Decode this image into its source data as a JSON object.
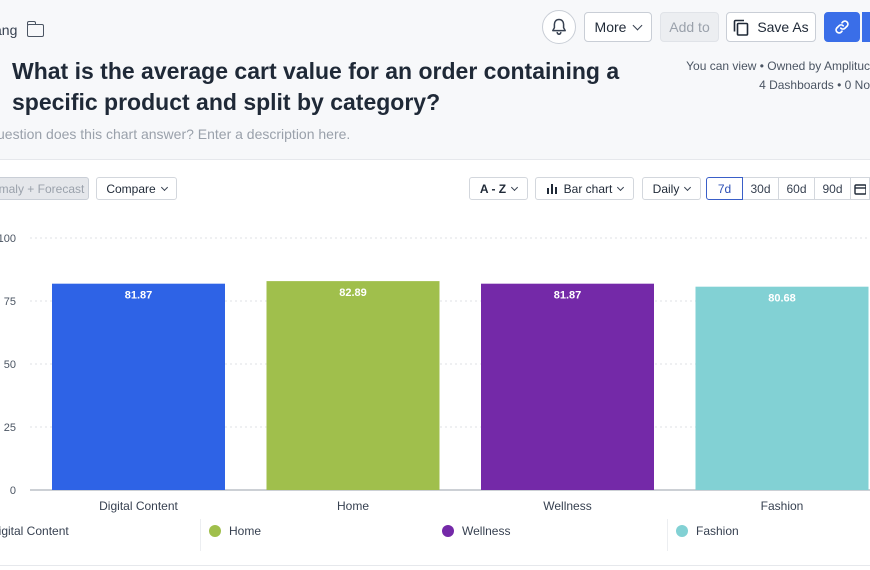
{
  "breadcrumb": {
    "owner_fragment": "ang"
  },
  "header": {
    "title": "What is the average cart value for an order containing a specific product and split by category?",
    "description_placeholder": "uestion does this chart answer? Enter a description here.",
    "permissions": "You can view • Owned by Amplituc",
    "usage": "4 Dashboards • 0 No"
  },
  "actions": {
    "more": "More",
    "add_to": "Add to",
    "save_as": "Save As"
  },
  "toolbar": {
    "anomaly_forecast": "maly + Forecast",
    "compare": "Compare",
    "sort": "A - Z",
    "chart_type": "Bar chart",
    "interval": "Daily",
    "ranges": [
      "7d",
      "30d",
      "60d",
      "90d"
    ],
    "active_range": "7d"
  },
  "colors": {
    "accent": "#3a6ee8",
    "digital_content": "#2e63e6",
    "home": "#a0bf4c",
    "wellness": "#7429a8",
    "fashion": "#82d1d4"
  },
  "chart_data": {
    "type": "bar",
    "categories": [
      "Digital Content",
      "Home",
      "Wellness",
      "Fashion"
    ],
    "values": [
      81.87,
      82.89,
      81.87,
      80.68
    ],
    "data_labels": [
      "81.87",
      "82.89",
      "81.87",
      "80.68"
    ],
    "bar_colors": [
      "#2e63e6",
      "#a0bf4c",
      "#7429a8",
      "#82d1d4"
    ],
    "ylim": [
      0,
      100
    ],
    "yticks": [
      0,
      25,
      50,
      75,
      100
    ],
    "ytick_labels": [
      "0",
      "25",
      "50",
      "75",
      "100"
    ],
    "grid": true,
    "legend_position": "bottom",
    "legend": [
      {
        "label": "Digital Content",
        "color": "#2e63e6"
      },
      {
        "label": "Home",
        "color": "#a0bf4c"
      },
      {
        "label": "Wellness",
        "color": "#7429a8"
      },
      {
        "label": "Fashion",
        "color": "#82d1d4"
      }
    ]
  }
}
